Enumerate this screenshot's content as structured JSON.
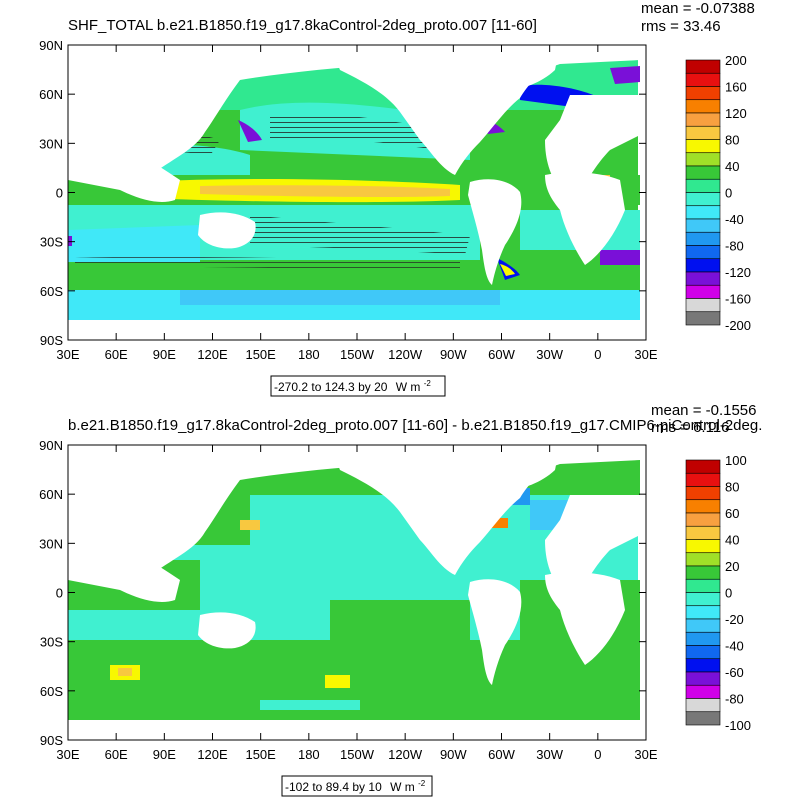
{
  "chart_data": [
    {
      "type": "heatmap",
      "title": "SHF_TOTAL b.e21.B1850.f19_g17.8kaControl-2deg_proto.007 [11-60]",
      "stats": {
        "mean": "mean = -0.07388",
        "rms": "rms = 33.46"
      },
      "range_label": "-270.2 to 124.3 by 20",
      "units": "W m",
      "units_exp": "-2",
      "x_ticks": [
        "30E",
        "60E",
        "90E",
        "120E",
        "150E",
        "180",
        "150W",
        "120W",
        "90W",
        "60W",
        "30W",
        "0",
        "30E"
      ],
      "y_ticks": [
        "90N",
        "60N",
        "30N",
        "0",
        "30S",
        "60S",
        "90S"
      ],
      "colorbar_labels": [
        "200",
        "160",
        "120",
        "80",
        "40",
        "0",
        "-40",
        "-80",
        "-120",
        "-160",
        "-200"
      ],
      "colorbar_colors": [
        "#c00000",
        "#e81010",
        "#f04000",
        "#f88000",
        "#f8a040",
        "#f8c840",
        "#f8f800",
        "#a0e028",
        "#38c838",
        "#30e890",
        "#40f0d0",
        "#40e8f8",
        "#40c8f8",
        "#2098f0",
        "#1068f0",
        "#0010f0",
        "#7a10d8",
        "#d000e8",
        "#d8d8d8",
        "#787878"
      ],
      "xlim": [
        30,
        390
      ],
      "ylim": [
        -90,
        90
      ]
    },
    {
      "type": "heatmap",
      "title": "b.e21.B1850.f19_g17.8kaControl-2deg_proto.007 [11-60] - b.e21.B1850.f19_g17.CMIP6-piControl-2deg.",
      "stats": {
        "mean": "mean = -0.1556",
        "rms": "rms = 6.116"
      },
      "range_label": "-102 to 89.4 by 10",
      "units": "W m",
      "units_exp": "-2",
      "x_ticks": [
        "30E",
        "60E",
        "90E",
        "120E",
        "150E",
        "180",
        "150W",
        "120W",
        "90W",
        "60W",
        "30W",
        "0",
        "30E"
      ],
      "y_ticks": [
        "90N",
        "60N",
        "30N",
        "0",
        "30S",
        "60S",
        "90S"
      ],
      "colorbar_labels": [
        "100",
        "80",
        "60",
        "40",
        "20",
        "0",
        "-20",
        "-40",
        "-60",
        "-80",
        "-100"
      ],
      "colorbar_colors": [
        "#c00000",
        "#e81010",
        "#f04000",
        "#f88000",
        "#f8a040",
        "#f8c840",
        "#f8f800",
        "#a0e028",
        "#38c838",
        "#30e890",
        "#40f0d0",
        "#40e8f8",
        "#40c8f8",
        "#2098f0",
        "#1068f0",
        "#0010f0",
        "#7a10d8",
        "#d000e8",
        "#d8d8d8",
        "#787878"
      ],
      "xlim": [
        30,
        390
      ],
      "ylim": [
        -90,
        90
      ]
    }
  ]
}
